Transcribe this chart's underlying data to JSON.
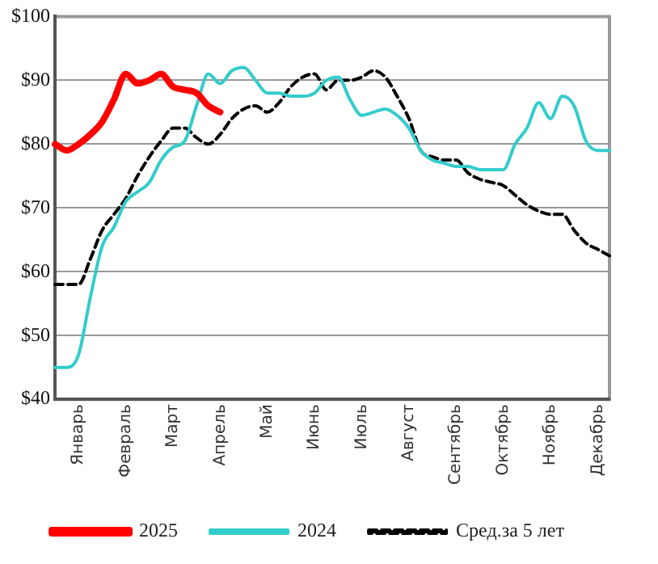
{
  "chart_data": {
    "type": "line",
    "categories": [
      null,
      null,
      "Январь",
      null,
      null,
      null,
      "Февраль",
      null,
      null,
      null,
      "Март",
      null,
      null,
      null,
      "Апрель",
      null,
      null,
      null,
      "Май",
      null,
      null,
      null,
      "Июнь",
      null,
      null,
      null,
      "Июль",
      null,
      null,
      null,
      "Август",
      null,
      null,
      null,
      "Сентябрь",
      null,
      null,
      null,
      "Октябрь",
      null,
      null,
      null,
      "Ноябрь",
      null,
      null,
      null,
      "Декабрь",
      null
    ],
    "ylim": [
      40,
      100
    ],
    "yticks": [
      {
        "value": 40,
        "label": "$40"
      },
      {
        "value": 50,
        "label": "$50"
      },
      {
        "value": 60,
        "label": "$60"
      },
      {
        "value": 70,
        "label": "$70"
      },
      {
        "value": 80,
        "label": "$80"
      },
      {
        "value": 90,
        "label": "$90"
      },
      {
        "value": 100,
        "label": "$100"
      }
    ],
    "grid": "y",
    "legend": "bottom",
    "marker": "none",
    "series": [
      {
        "name": "2025",
        "color": "#ff0000",
        "line_style": "solid",
        "values": [
          80,
          79,
          80,
          81.5,
          83.5,
          87,
          91,
          89.5,
          90,
          91,
          89,
          88.5,
          88,
          86,
          85,
          null,
          null,
          null,
          null,
          null,
          null,
          null,
          null,
          null,
          null,
          null,
          null,
          null,
          null,
          null,
          null,
          null,
          null,
          null,
          null,
          null,
          null,
          null,
          null,
          null,
          null,
          null,
          null,
          null,
          null,
          null,
          null,
          null
        ]
      },
      {
        "name": "2024",
        "color": "#33cccc",
        "line_style": "solid",
        "values": [
          45,
          45,
          47,
          56,
          64,
          67,
          71,
          72.5,
          74,
          77.5,
          79.5,
          80.5,
          86,
          91,
          89.5,
          91.5,
          92,
          90,
          88,
          88,
          87.5,
          87.5,
          88,
          90,
          90.5,
          87,
          84.5,
          85,
          85.5,
          84.5,
          82.5,
          79,
          77.5,
          77,
          76.5,
          76.5,
          76,
          76,
          76,
          80,
          82.5,
          86.5,
          84,
          87.5,
          86,
          80.5,
          79,
          79
        ]
      },
      {
        "name": "Сред.за 5 лет",
        "color": "#000000",
        "line_style": "dashed",
        "values": [
          58,
          58,
          58,
          62,
          66.5,
          69,
          71.5,
          75,
          78,
          80.5,
          82.5,
          82.5,
          81,
          80,
          81.5,
          84,
          85.5,
          86,
          85,
          86.5,
          89,
          90.5,
          91,
          88.5,
          90,
          90,
          90.5,
          91.5,
          90.5,
          87.5,
          84,
          79,
          78,
          77.5,
          77.5,
          75.5,
          74.5,
          74,
          73.5,
          72,
          70.5,
          69.5,
          69,
          69,
          66.5,
          64.5,
          63.5,
          62.5
        ]
      }
    ]
  }
}
